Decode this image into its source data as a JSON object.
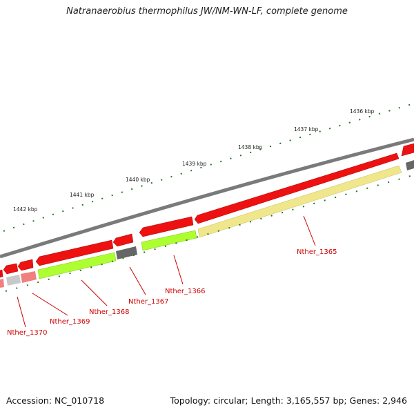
{
  "title": "Natranaerobius thermophilus JW/NM-WN-LF, complete genome",
  "accession_text": "Accession: NC_010718",
  "summary_text": "Topology: circular; Length: 3,165,557 bp; Genes: 2,946",
  "ruler": {
    "labels": [
      "1436 kbp",
      "1437 kbp",
      "1438 kbp",
      "1439 kbp",
      "1440 kbp",
      "1441 kbp",
      "1442 kbp"
    ]
  },
  "genes": [
    {
      "label": "Nther_1365",
      "strand": "forward",
      "color": "#ee1111",
      "product_color": "#f0e68c"
    },
    {
      "label": "Nther_1366",
      "strand": "reverse",
      "color": "#ee1111",
      "product_color": "#adff2f"
    },
    {
      "label": "Nther_1367",
      "strand": "reverse",
      "color": "#ee1111",
      "product_color": "#666666"
    },
    {
      "label": "Nther_1368",
      "strand": "reverse",
      "color": "#ee1111",
      "product_color": "#adff2f"
    },
    {
      "label": "Nther_1369",
      "strand": "reverse",
      "color": "#ee1111",
      "product_color": "#f08080"
    },
    {
      "label": "Nther_1370",
      "strand": "reverse",
      "color": "#ee1111",
      "product_color": "#c8c8c8"
    }
  ],
  "colors": {
    "backbone": "#7a7a7a",
    "gene": "#ee1111",
    "tick": "#1a7a1a",
    "label": "#cc0000"
  }
}
